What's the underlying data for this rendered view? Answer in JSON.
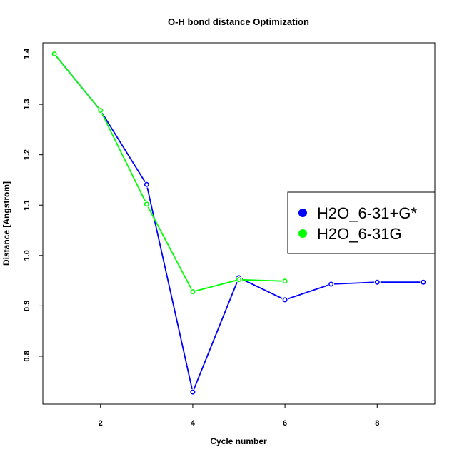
{
  "chart_data": {
    "type": "line",
    "title": "O-H bond distance Optimization",
    "xlabel": "Cycle number",
    "ylabel": "Distance [Angstrom]",
    "xlim": [
      0.75,
      9.25
    ],
    "ylim": [
      0.705,
      1.422
    ],
    "xticks": [
      2,
      4,
      6,
      8
    ],
    "yticks": [
      0.8,
      0.9,
      1.0,
      1.1,
      1.2,
      1.3,
      1.4
    ],
    "ytick_labels": [
      "0.8",
      "0.9",
      "1.0",
      "1.1",
      "1.2",
      "1.3",
      "1.4"
    ],
    "grid": false,
    "legend_position": "right",
    "series": [
      {
        "name": "H2O_6-31+G*",
        "color": "#0000FF",
        "x": [
          1,
          2,
          3,
          4,
          5,
          6,
          7,
          8,
          9
        ],
        "y": [
          1.4,
          1.288,
          1.141,
          0.729,
          0.956,
          0.912,
          0.943,
          0.947,
          0.947
        ]
      },
      {
        "name": "H2O_6-31G",
        "color": "#00FF00",
        "x": [
          1,
          2,
          3,
          4,
          5,
          6
        ],
        "y": [
          1.4,
          1.288,
          1.102,
          0.928,
          0.952,
          0.949
        ]
      }
    ]
  }
}
